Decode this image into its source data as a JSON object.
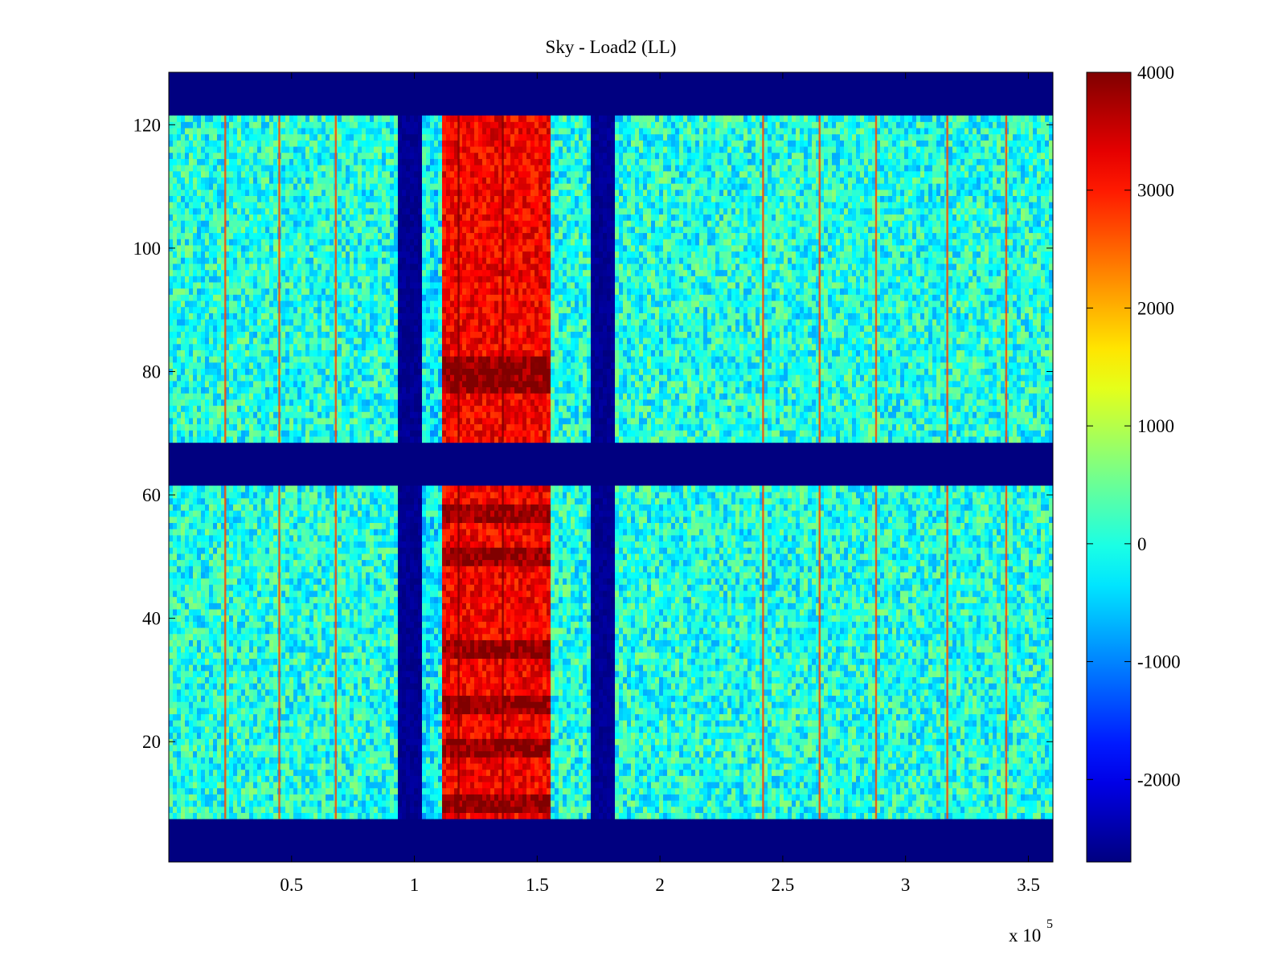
{
  "chart_data": {
    "type": "heatmap",
    "title": "Sky - Load2 (LL)",
    "xlabel": "",
    "ylabel": "",
    "x_exponent_label": "x 10",
    "x_exponent_power": "5",
    "xlim": [
      0,
      3.6
    ],
    "ylim": [
      0.5,
      128.5
    ],
    "x_ticks": [
      0.5,
      1,
      1.5,
      2,
      2.5,
      3,
      3.5
    ],
    "x_tick_labels": [
      "0.5",
      "1",
      "1.5",
      "2",
      "2.5",
      "3",
      "3.5"
    ],
    "y_ticks": [
      20,
      40,
      60,
      80,
      100,
      120
    ],
    "y_tick_labels": [
      "20",
      "40",
      "60",
      "80",
      "100",
      "120"
    ],
    "colormap": "jet",
    "clim": [
      -2700,
      4000
    ],
    "colorbar_ticks": [
      4000,
      3000,
      2000,
      1000,
      0,
      -1000,
      -2000
    ],
    "colorbar_tick_labels": [
      "4000",
      "3000",
      "2000",
      "1000",
      "0",
      "-1000",
      "-2000"
    ],
    "background_value": -2700,
    "masked_row_bands": [
      {
        "y_from": 0.5,
        "y_to": 7.5
      },
      {
        "y_from": 61.5,
        "y_to": 68.5
      },
      {
        "y_from": 121.5,
        "y_to": 128.5
      }
    ],
    "column_bands": [
      {
        "x_from": 0.0,
        "x_to": 0.93,
        "level": 0
      },
      {
        "x_from": 0.93,
        "x_to": 1.03,
        "level": -2700
      },
      {
        "x_from": 1.03,
        "x_to": 1.12,
        "level": -200
      },
      {
        "x_from": 1.12,
        "x_to": 1.55,
        "level": 3200
      },
      {
        "x_from": 1.55,
        "x_to": 1.72,
        "level": 0
      },
      {
        "x_from": 1.72,
        "x_to": 1.82,
        "level": -2700
      },
      {
        "x_from": 1.82,
        "x_to": 3.6,
        "level": 0
      }
    ],
    "bright_lines_x": [
      0.23,
      0.45,
      0.68,
      1.18,
      1.36,
      2.42,
      2.65,
      2.88,
      3.17,
      3.41
    ],
    "strong_rows_y": [
      10,
      19,
      26,
      35,
      50,
      57,
      78,
      81
    ],
    "grid": false,
    "legend": "none"
  }
}
